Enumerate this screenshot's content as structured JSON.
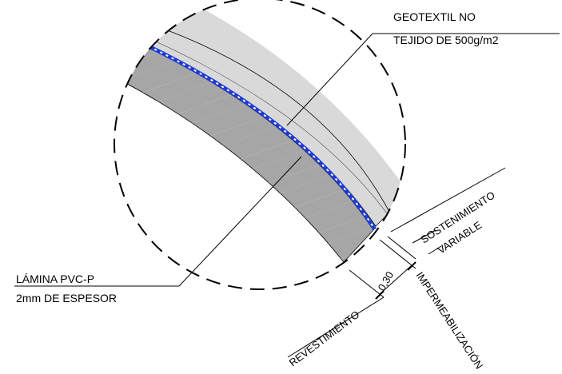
{
  "labels": {
    "geotextil_line1": "GEOTEXTIL NO",
    "geotextil_line2": "TEJIDO DE 500g/m2",
    "lamina_line1": "LÁMINA PVC-P",
    "lamina_line2": "2mm DE ESPESOR",
    "sostenimiento": "SOSTENIMIENTO",
    "variable": "VARIABLE",
    "dimension": "0,30",
    "revestimiento": "REVESTIMIENTO",
    "impermeabilizacion": "IMPERMEABILIZACIÓN"
  },
  "colors": {
    "light_layer": "#d9d9d9",
    "dark_layer": "#a6a6a6",
    "membrane": "#1f3bd6",
    "line": "#000000"
  }
}
